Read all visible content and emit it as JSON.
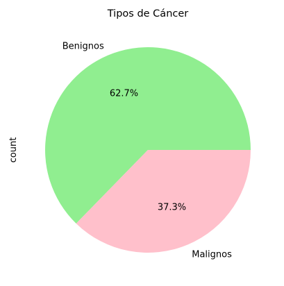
{
  "chart_data": {
    "type": "pie",
    "title": "Tipos de Cáncer",
    "ylabel": "count",
    "categories": [
      "Benignos",
      "Malignos"
    ],
    "percent_labels": [
      "62.7%",
      "37.3%"
    ],
    "values": [
      62.7,
      37.3
    ],
    "colors": [
      "#90ee90",
      "#ffc0cb"
    ],
    "start_angle_deg": 0,
    "direction": "counterclockwise"
  }
}
